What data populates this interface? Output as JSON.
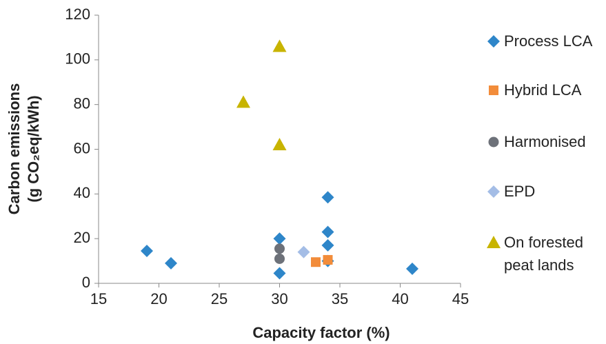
{
  "chart_data": {
    "type": "scatter",
    "x_label": "Capacity factor (%)",
    "y_label": [
      "Carbon emissions",
      "(g CO₂eq/kWh)"
    ],
    "xlim": [
      15,
      45
    ],
    "xticks": [
      15,
      20,
      25,
      30,
      35,
      40,
      45
    ],
    "ylim": [
      0,
      120
    ],
    "yticks": [
      0,
      20,
      40,
      60,
      80,
      100,
      120
    ],
    "grid": false,
    "legend": "right",
    "series": [
      {
        "name": "Process LCA",
        "color": "#2e86c9",
        "marker": "diamond",
        "x": [
          19,
          21,
          30,
          30,
          34,
          34,
          34,
          34,
          41
        ],
        "values": [
          14.5,
          9,
          20,
          4.5,
          38.5,
          23,
          17,
          10,
          6.5
        ]
      },
      {
        "name": "Hybrid LCA",
        "color": "#f28c3a",
        "marker": "square",
        "x": [
          33,
          34
        ],
        "values": [
          9.5,
          10.5
        ]
      },
      {
        "name": "Harmonised",
        "color": "#6d7179",
        "marker": "circle",
        "x": [
          30,
          30
        ],
        "values": [
          15.5,
          11
        ]
      },
      {
        "name": "EPD",
        "color": "#a4bde6",
        "marker": "diamond",
        "x": [
          32
        ],
        "values": [
          14
        ]
      },
      {
        "name": "On forested peat lands",
        "color": "#c8b400",
        "marker": "triangle",
        "x": [
          27,
          30,
          30
        ],
        "values": [
          81,
          106,
          62
        ]
      }
    ]
  }
}
